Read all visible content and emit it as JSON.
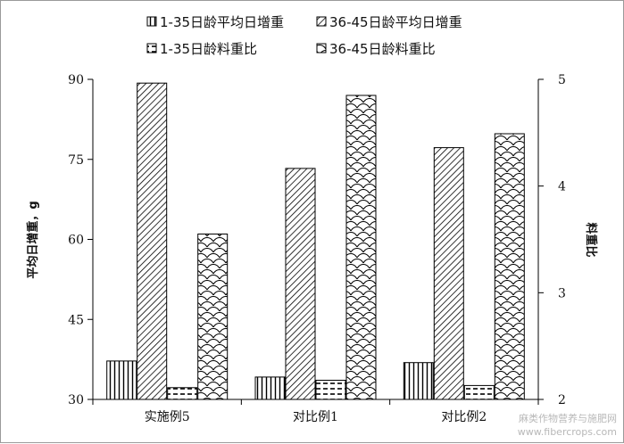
{
  "chart_data": {
    "type": "bar",
    "categories": [
      "实施例5",
      "对比例1",
      "对比例2"
    ],
    "series": [
      {
        "name": "1-35日龄平均日增重",
        "values": [
          37.2,
          34.2,
          36.9
        ],
        "axis": "left",
        "pattern": "vertical-lines"
      },
      {
        "name": "36-45日龄平均日增重",
        "values": [
          89.3,
          73.3,
          77.2
        ],
        "axis": "left",
        "pattern": "diagonal-lines"
      },
      {
        "name": "1-35日龄料重比",
        "values": [
          2.11,
          2.18,
          2.13
        ],
        "axis": "right",
        "pattern": "dashes"
      },
      {
        "name": "36-45日龄料重比",
        "values": [
          3.55,
          4.85,
          4.49
        ],
        "axis": "right",
        "pattern": "waves"
      }
    ],
    "ylabel_left": "平均日增重，g",
    "ylabel_right": "料重比",
    "ylim_left": [
      30,
      90
    ],
    "yticks_left": [
      30,
      45,
      60,
      75,
      90
    ],
    "ylim_right": [
      2,
      5
    ],
    "yticks_right": [
      2,
      3,
      4,
      5
    ],
    "legend_position": "top",
    "grid": false
  },
  "watermark": {
    "line1": "麻类作物营养与施肥网",
    "line2": "www.fibercrops.com"
  }
}
